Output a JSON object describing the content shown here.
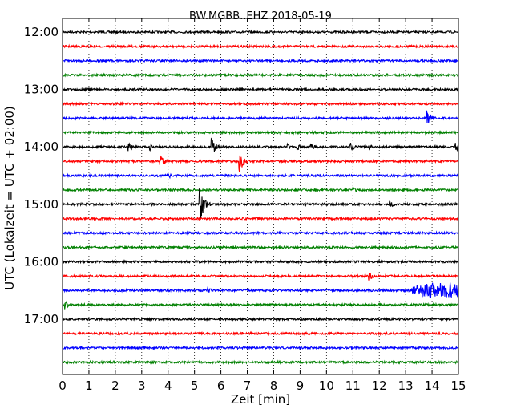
{
  "chart_data": {
    "type": "line",
    "title": "BW.MGBB..EHZ 2018-05-19",
    "xlabel": "Zeit  [min]",
    "ylabel": "UTC (Lokalzeit = UTC + 02:00)",
    "xlim": [
      0,
      15
    ],
    "x_ticks": [
      0,
      1,
      2,
      3,
      4,
      5,
      6,
      7,
      8,
      9,
      10,
      11,
      12,
      13,
      14,
      15
    ],
    "y_tick_labels": [
      "12:00",
      "13:00",
      "14:00",
      "15:00",
      "16:00",
      "17:00"
    ],
    "grid": "vertical dotted",
    "trace_colors": [
      "#000000",
      "#ff0000",
      "#0000ff",
      "#008000"
    ],
    "traces": [
      {
        "start": "12:00",
        "events": []
      },
      {
        "start": "12:15",
        "events": []
      },
      {
        "start": "12:30",
        "events": []
      },
      {
        "start": "12:45",
        "events": []
      },
      {
        "start": "13:00",
        "events": []
      },
      {
        "start": "13:15",
        "events": []
      },
      {
        "start": "13:30",
        "events": [
          {
            "t": 13.8,
            "amp": 10
          }
        ]
      },
      {
        "start": "13:45",
        "events": []
      },
      {
        "start": "14:00",
        "events": [
          {
            "t": 2.5,
            "amp": 6
          },
          {
            "t": 3.3,
            "amp": 5
          },
          {
            "t": 5.65,
            "amp": 12
          },
          {
            "t": 8.5,
            "amp": 5
          },
          {
            "t": 8.9,
            "amp": 6
          },
          {
            "t": 9.4,
            "amp": 5
          },
          {
            "t": 10.9,
            "amp": 6
          },
          {
            "t": 11.6,
            "amp": 5
          },
          {
            "t": 14.9,
            "amp": 6
          }
        ]
      },
      {
        "start": "14:15",
        "events": [
          {
            "t": 3.7,
            "amp": 9
          },
          {
            "t": 6.7,
            "amp": 14
          }
        ]
      },
      {
        "start": "14:30",
        "events": [
          {
            "t": 4.0,
            "amp": 4
          }
        ]
      },
      {
        "start": "14:45",
        "events": [
          {
            "t": 11.0,
            "amp": 4
          }
        ]
      },
      {
        "start": "15:00",
        "events": [
          {
            "t": 5.2,
            "amp": 22
          },
          {
            "t": 12.4,
            "amp": 5
          }
        ]
      },
      {
        "start": "15:15",
        "events": []
      },
      {
        "start": "15:30",
        "events": []
      },
      {
        "start": "15:45",
        "events": []
      },
      {
        "start": "16:00",
        "events": []
      },
      {
        "start": "16:15",
        "events": [
          {
            "t": 11.6,
            "amp": 6
          }
        ]
      },
      {
        "start": "16:30",
        "events": [
          {
            "t": 5.5,
            "amp": 4
          },
          {
            "t": 13.0,
            "amp": 10,
            "burst": true
          }
        ]
      },
      {
        "start": "16:45",
        "events": [
          {
            "t": 0.1,
            "amp": 6
          }
        ]
      },
      {
        "start": "17:00",
        "events": []
      },
      {
        "start": "17:15",
        "events": []
      },
      {
        "start": "17:30",
        "events": []
      },
      {
        "start": "17:45",
        "events": []
      }
    ]
  }
}
